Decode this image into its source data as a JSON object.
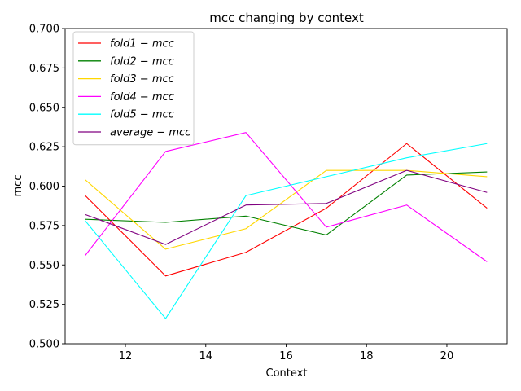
{
  "chart_data": {
    "type": "line",
    "title": "mcc changing by context",
    "xlabel": "Context",
    "ylabel": "mcc",
    "xlim": [
      10.5,
      21.5
    ],
    "ylim": [
      0.5,
      0.7
    ],
    "xticks": [
      12,
      14,
      16,
      18,
      20
    ],
    "yticks": [
      0.5,
      0.525,
      0.55,
      0.575,
      0.6,
      0.625,
      0.65,
      0.675,
      0.7
    ],
    "ytick_labels": [
      "0.500",
      "0.525",
      "0.550",
      "0.575",
      "0.600",
      "0.625",
      "0.650",
      "0.675",
      "0.700"
    ],
    "grid": false,
    "legend_position": "top-left",
    "x": [
      11,
      13,
      15,
      17,
      19,
      21
    ],
    "series": [
      {
        "name": "fold1 − mcc",
        "color": "#ff0000",
        "values": [
          0.594,
          0.543,
          0.558,
          0.586,
          0.627,
          0.586
        ]
      },
      {
        "name": "fold2 − mcc",
        "color": "#008000",
        "values": [
          0.579,
          0.577,
          0.581,
          0.569,
          0.607,
          0.609
        ]
      },
      {
        "name": "fold3 − mcc",
        "color": "#ffd700",
        "values": [
          0.604,
          0.56,
          0.573,
          0.61,
          0.61,
          0.606
        ]
      },
      {
        "name": "fold4 − mcc",
        "color": "#ff00ff",
        "values": [
          0.556,
          0.622,
          0.634,
          0.574,
          0.588,
          0.552
        ]
      },
      {
        "name": "fold5 − mcc",
        "color": "#00ffff",
        "values": [
          0.578,
          0.516,
          0.594,
          0.606,
          0.618,
          0.627
        ]
      },
      {
        "name": "average − mcc",
        "color": "#800080",
        "values": [
          0.582,
          0.563,
          0.588,
          0.589,
          0.61,
          0.596
        ]
      }
    ]
  }
}
